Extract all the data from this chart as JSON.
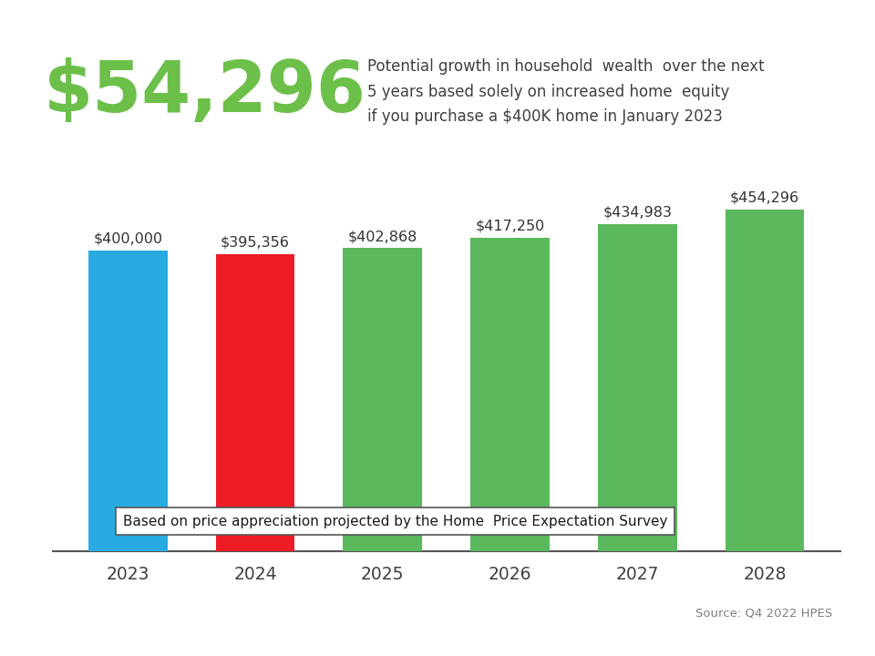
{
  "years": [
    "2023",
    "2024",
    "2025",
    "2026",
    "2027",
    "2028"
  ],
  "values": [
    400000,
    395356,
    402868,
    417250,
    434983,
    454296
  ],
  "bar_colors": [
    "#29ABE2",
    "#EE1C25",
    "#5CB85C",
    "#5CB85C",
    "#5CB85C",
    "#5CB85C"
  ],
  "bar_labels": [
    "$400,000",
    "$395,356",
    "$402,868",
    "$417,250",
    "$434,983",
    "$454,296"
  ],
  "big_number": "$54,296",
  "big_number_color": "#6CC04A",
  "description_line1": "Potential growth in household  wealth  over the next",
  "description_line2": "5 years based solely on increased home  equity",
  "description_line3": "if you purchase a $400K home in January 2023",
  "description_color": "#404040",
  "footnote": "Based on price appreciation projected by the Home  Price Expectation Survey",
  "source": "Source: Q4 2022 HPES",
  "source_color": "#808080",
  "top_bar_color": "#29ABE2",
  "background_color": "#FFFFFF",
  "ylim_min": 0,
  "ylim_max": 480000
}
